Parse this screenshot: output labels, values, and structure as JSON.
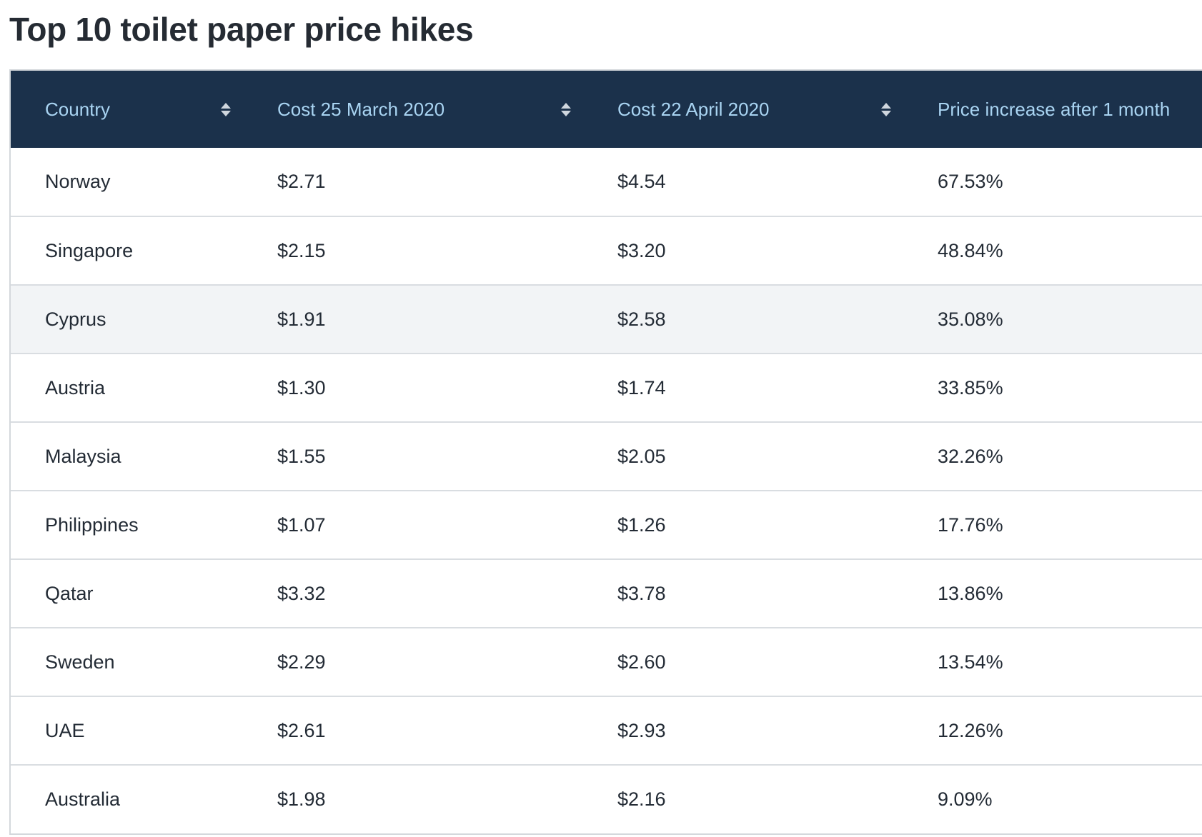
{
  "page": {
    "title": "Top 10 toilet paper price hikes"
  },
  "table": {
    "columns": [
      {
        "label": "Country"
      },
      {
        "label": "Cost 25 March 2020"
      },
      {
        "label": "Cost 22 April 2020"
      },
      {
        "label": "Price increase after 1 month"
      }
    ],
    "rows": [
      [
        "Norway",
        "$2.71",
        "$4.54",
        "67.53%"
      ],
      [
        "Singapore",
        "$2.15",
        "$3.20",
        "48.84%"
      ],
      [
        "Cyprus",
        "$1.91",
        "$2.58",
        "35.08%"
      ],
      [
        "Austria",
        "$1.30",
        "$1.74",
        "33.85%"
      ],
      [
        "Malaysia",
        "$1.55",
        "$2.05",
        "32.26%"
      ],
      [
        "Philippines",
        "$1.07",
        "$1.26",
        "17.76%"
      ],
      [
        "Qatar",
        "$3.32",
        "$3.78",
        "13.86%"
      ],
      [
        "Sweden",
        "$2.29",
        "$2.60",
        "13.54%"
      ],
      [
        "UAE",
        "$2.61",
        "$2.93",
        "12.26%"
      ],
      [
        "Australia",
        "$1.98",
        "$2.16",
        "9.09%"
      ]
    ],
    "highlighted_row": 2
  },
  "colors": {
    "header_bg": "#1b314b",
    "header_text": "#a9d4f2",
    "row_highlight": "#f2f4f6",
    "border": "#d9dde1"
  },
  "icons": {
    "sort": "sort-updown-icon"
  }
}
